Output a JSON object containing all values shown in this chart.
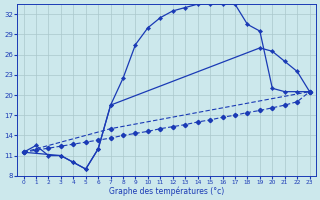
{
  "xlabel": "Graphe des températures (°c)",
  "bg_color": "#cce8ec",
  "line_color": "#1a3ab5",
  "grid_color": "#aac8cc",
  "xlim": [
    -0.5,
    23.5
  ],
  "ylim": [
    8,
    33.5
  ],
  "xticks": [
    0,
    1,
    2,
    3,
    4,
    5,
    6,
    7,
    8,
    9,
    10,
    11,
    12,
    13,
    14,
    15,
    16,
    17,
    18,
    19,
    20,
    21,
    22,
    23
  ],
  "yticks": [
    8,
    11,
    14,
    17,
    20,
    23,
    26,
    29,
    32
  ],
  "curve1_x": [
    0,
    1,
    2,
    3,
    4,
    5,
    6,
    7,
    8,
    9,
    10,
    11,
    12,
    13,
    14,
    15,
    16,
    17,
    18,
    19,
    20,
    21,
    22,
    23
  ],
  "curve1_y": [
    11.5,
    12.5,
    11.0,
    11.0,
    10.0,
    9.0,
    12.0,
    18.5,
    22.5,
    27.5,
    30.0,
    31.5,
    32.5,
    33.0,
    33.5,
    33.5,
    33.5,
    33.5,
    30.5,
    29.5,
    21.0,
    20.5,
    20.5,
    20.5
  ],
  "curve2_x": [
    0,
    3,
    4,
    5,
    6,
    7,
    19,
    20,
    21,
    22,
    23
  ],
  "curve2_y": [
    11.5,
    11.0,
    10.0,
    9.0,
    12.0,
    18.5,
    27.0,
    26.5,
    25.0,
    23.5,
    20.5
  ],
  "curve3_x": [
    0,
    7,
    23
  ],
  "curve3_y": [
    11.5,
    15.0,
    20.5
  ],
  "curve4_x": [
    0,
    1,
    2,
    3,
    4,
    5,
    6,
    7,
    8,
    9,
    10,
    11,
    12,
    13,
    14,
    15,
    16,
    17,
    18,
    19,
    20,
    21,
    22,
    23
  ],
  "curve4_y": [
    11.5,
    11.8,
    12.1,
    12.4,
    12.7,
    13.0,
    13.3,
    13.6,
    14.0,
    14.3,
    14.6,
    15.0,
    15.3,
    15.6,
    16.0,
    16.3,
    16.7,
    17.0,
    17.4,
    17.7,
    18.1,
    18.5,
    19.0,
    20.5
  ]
}
